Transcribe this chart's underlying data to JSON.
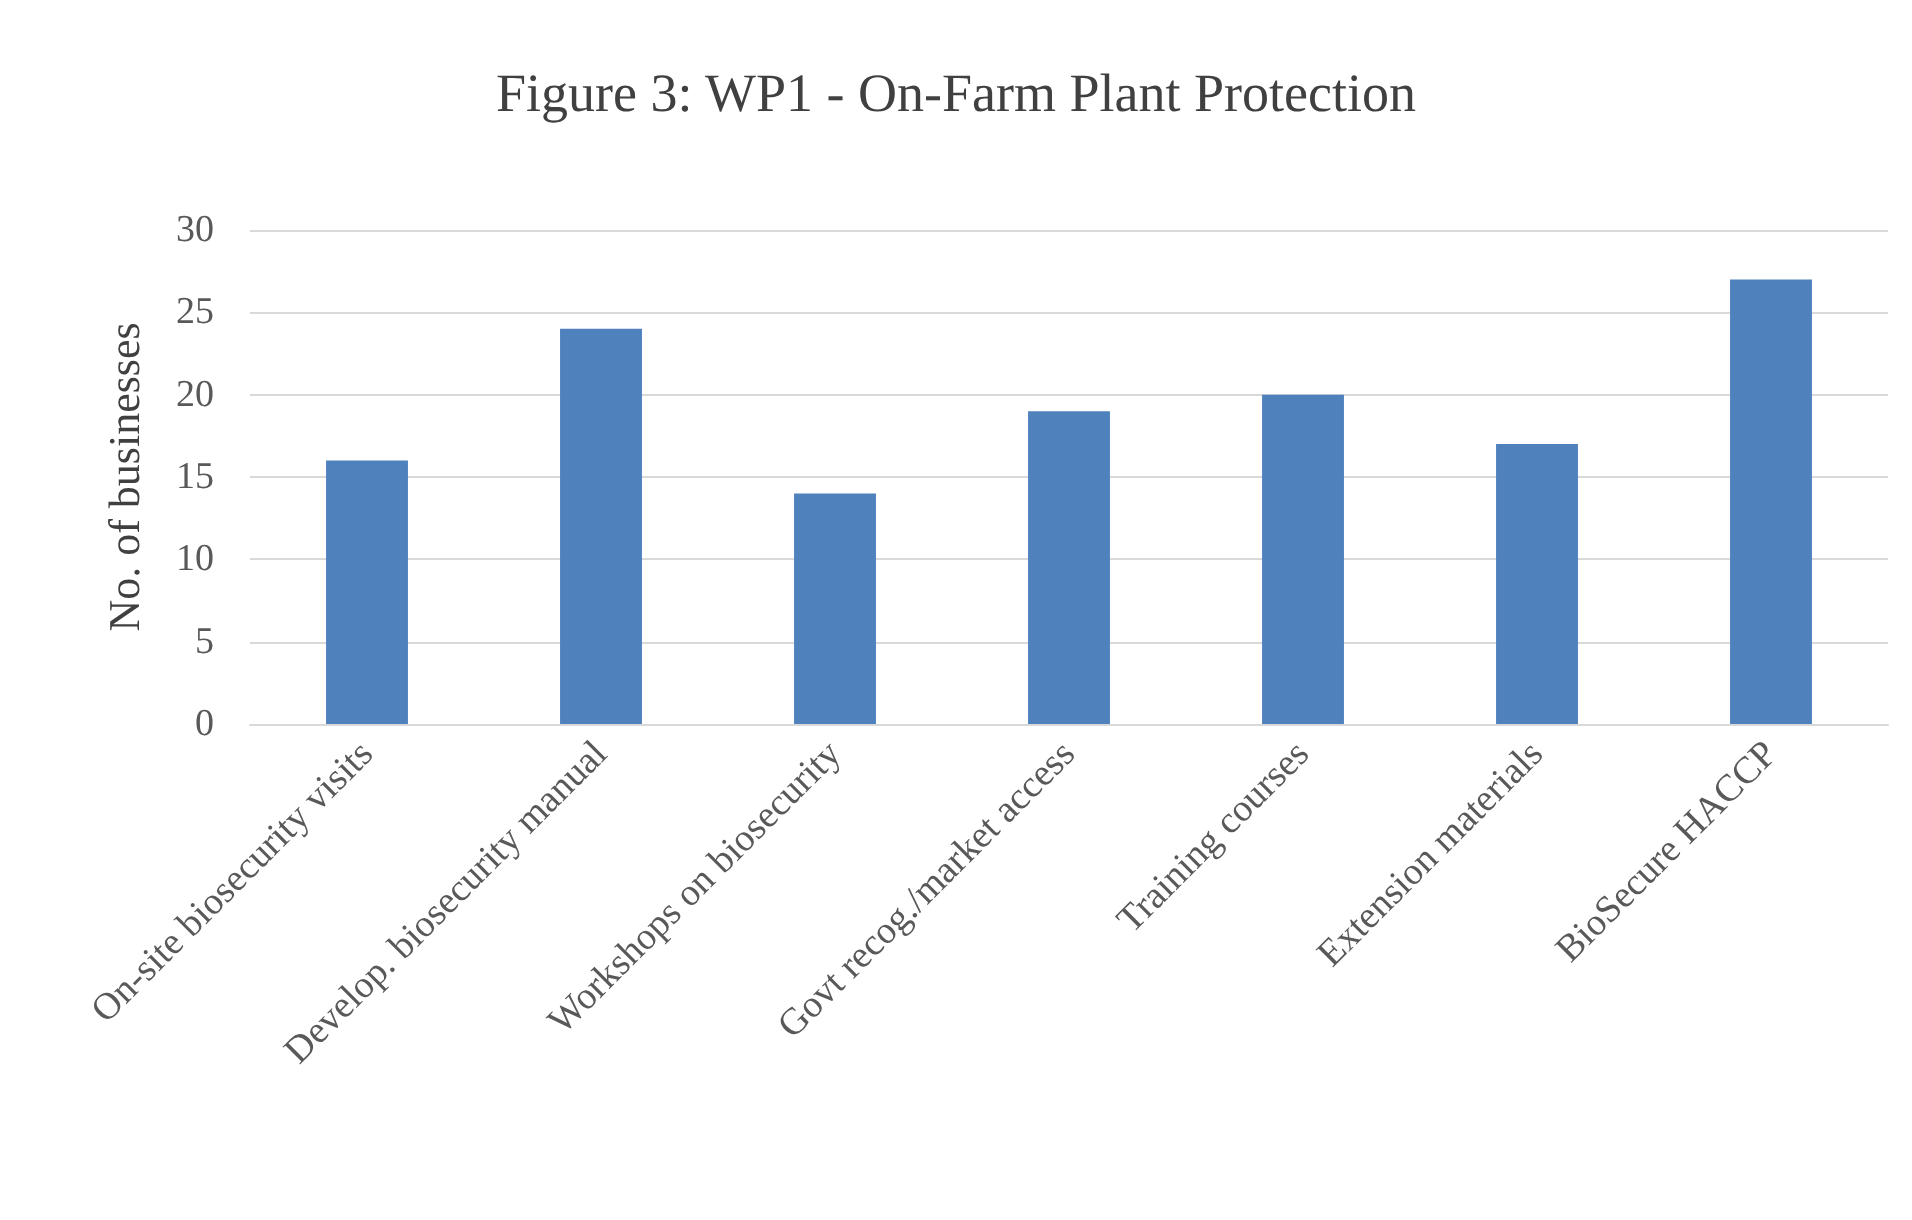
{
  "chart_data": {
    "type": "bar",
    "title": "Figure 3: WP1 - On-Farm Plant Protection",
    "ylabel": "No. of businesses",
    "categories": [
      "On-site biosecurity visits",
      "Develop. biosecurity manual",
      "Workshops on biosecurity",
      "Govt recog./market access",
      "Training courses",
      "Extension materials",
      "BioSecure HACCP"
    ],
    "values": [
      16,
      24,
      14,
      19,
      20,
      17,
      27
    ],
    "color": "#4f81bd",
    "ylim": [
      0,
      30
    ],
    "yticks": [
      0,
      5,
      10,
      15,
      20,
      25,
      30
    ],
    "grid": "y"
  }
}
